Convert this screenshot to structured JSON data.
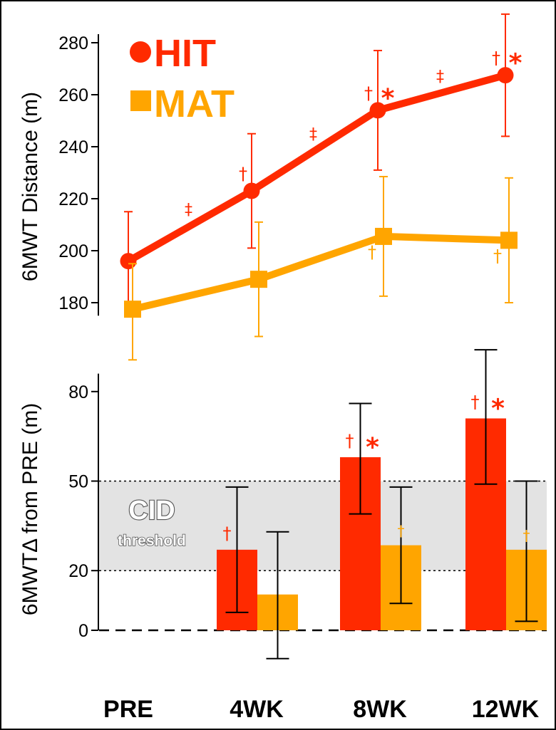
{
  "categories": [
    "PRE",
    "4WK",
    "8WK",
    "12WK"
  ],
  "legend": [
    {
      "label": "HIT",
      "color": "#ff2a00",
      "marker": "circle"
    },
    {
      "label": "MAT",
      "color": "#ffa500",
      "marker": "square"
    }
  ],
  "colors": {
    "hit": "#ff2a00",
    "mat": "#ffa500",
    "cid_band": "#e3e3e3"
  },
  "annotations": {
    "cid_title": "CID",
    "cid_subtitle": "threshold",
    "dagger": "†",
    "double_dagger": "‡",
    "asterisk": "*"
  },
  "chart_data": [
    {
      "type": "line",
      "ylabel": "6MWT Distance (m)",
      "ylim": [
        175,
        285
      ],
      "yticks": [
        180,
        200,
        220,
        240,
        260,
        280
      ],
      "grid": false,
      "legend_position": "top-left",
      "series": [
        {
          "name": "HIT",
          "values": [
            196,
            223,
            254,
            267.5
          ],
          "error_low": [
            178,
            201,
            231,
            244
          ],
          "error_high": [
            215,
            245,
            277,
            291
          ],
          "dagger": [
            false,
            true,
            true,
            true
          ],
          "asterisk": [
            false,
            false,
            true,
            true
          ]
        },
        {
          "name": "MAT",
          "values": [
            177.5,
            189,
            205.5,
            204
          ],
          "error_low": [
            158,
            167,
            182.5,
            180
          ],
          "error_high": [
            195,
            211,
            228.5,
            228
          ],
          "dagger": [
            false,
            false,
            true,
            true
          ],
          "asterisk": [
            false,
            false,
            false,
            false
          ]
        }
      ],
      "between_points": [
        {
          "series": "HIT",
          "from": "PRE",
          "to": "4WK",
          "mark": "‡"
        },
        {
          "series": "HIT",
          "from": "4WK",
          "to": "8WK",
          "mark": "‡"
        },
        {
          "series": "HIT",
          "from": "8WK",
          "to": "12WK",
          "mark": "‡"
        }
      ]
    },
    {
      "type": "bar",
      "ylabel": "6MWTΔ from PRE (m)",
      "ylim": [
        0,
        86
      ],
      "yticks": [
        0,
        20,
        50,
        80
      ],
      "grid": false,
      "band": {
        "from": 20,
        "to": 50
      },
      "series": [
        {
          "name": "HIT",
          "values": [
            null,
            27,
            58,
            71
          ],
          "error_low": [
            null,
            6,
            39,
            49
          ],
          "error_high": [
            null,
            48,
            76,
            94
          ],
          "dagger": [
            false,
            true,
            true,
            true
          ],
          "asterisk": [
            false,
            false,
            true,
            true
          ]
        },
        {
          "name": "MAT",
          "values": [
            null,
            12,
            28.5,
            27
          ],
          "error_low": [
            null,
            -9.5,
            9,
            3
          ],
          "error_high": [
            null,
            33,
            48,
            50
          ],
          "dagger": [
            false,
            false,
            true,
            true
          ],
          "asterisk": [
            false,
            false,
            false,
            false
          ]
        }
      ]
    }
  ]
}
